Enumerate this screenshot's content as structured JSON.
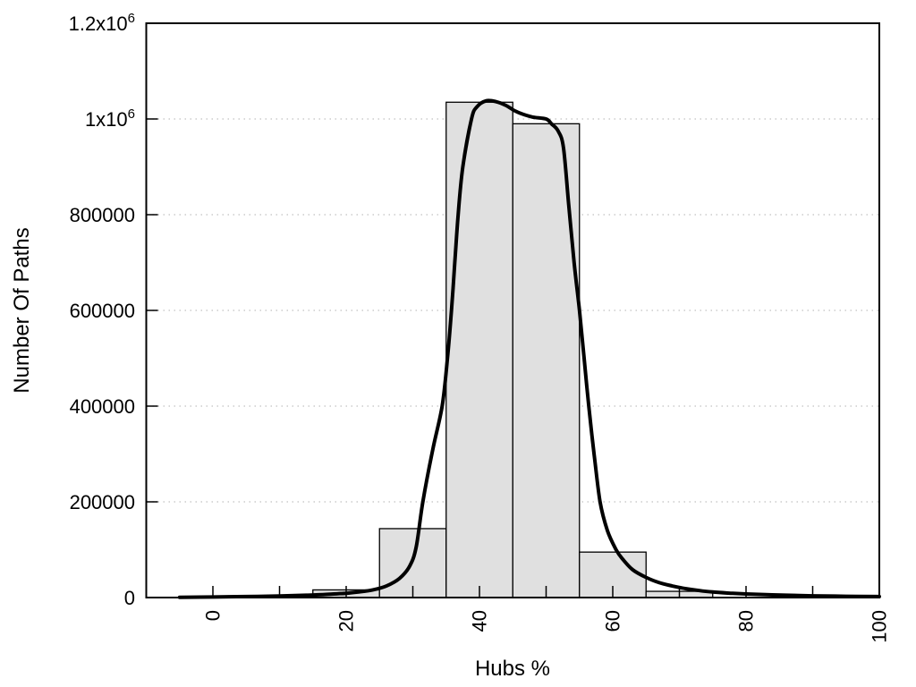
{
  "chart_data": {
    "type": "bar",
    "subtype": "histogram-with-fit-curve",
    "title": "",
    "xlabel": "Hubs %",
    "ylabel": "Number Of Paths",
    "xlim": [
      -10,
      100
    ],
    "ylim": [
      0,
      1200000
    ],
    "legend": "none",
    "grid": {
      "horizontal_at": [
        200000,
        400000,
        600000,
        800000,
        1000000
      ],
      "style": "dotted",
      "color": "#cccccc"
    },
    "x_ticks": {
      "major_values": [
        0,
        20,
        40,
        60,
        80,
        100
      ],
      "labels": [
        "0",
        "20",
        "40",
        "60",
        "80",
        "100"
      ],
      "minor_step": 10,
      "label_rotation_deg": -90
    },
    "y_ticks": {
      "values": [
        0,
        200000,
        400000,
        600000,
        800000,
        1000000,
        1200000
      ],
      "labels": [
        "0",
        "200000",
        "400000",
        "600000",
        "800000",
        "1x10^6",
        "1.2x10^6"
      ]
    },
    "bars": {
      "fill_color": "#e0e0e0",
      "edge_color": "#000000",
      "bin_width": 10,
      "bins": [
        {
          "x_start": 15,
          "x_end": 25,
          "count": 16000
        },
        {
          "x_start": 25,
          "x_end": 35,
          "count": 144000
        },
        {
          "x_start": 35,
          "x_end": 45,
          "count": 1035000
        },
        {
          "x_start": 45,
          "x_end": 55,
          "count": 990000
        },
        {
          "x_start": 55,
          "x_end": 65,
          "count": 95000
        },
        {
          "x_start": 65,
          "x_end": 75,
          "count": 13000
        }
      ]
    },
    "curve": {
      "color": "#000000",
      "stroke_width": 4,
      "points": [
        [
          -5,
          500
        ],
        [
          0,
          1200
        ],
        [
          5,
          2000
        ],
        [
          10,
          3200
        ],
        [
          14,
          4800
        ],
        [
          17,
          6500
        ],
        [
          20,
          9000
        ],
        [
          22,
          12000
        ],
        [
          24,
          16000
        ],
        [
          26,
          24000
        ],
        [
          28,
          40000
        ],
        [
          29.5,
          65000
        ],
        [
          30.5,
          105000
        ],
        [
          31.5,
          200000
        ],
        [
          33,
          310000
        ],
        [
          34.4,
          400000
        ],
        [
          35.2,
          500000
        ],
        [
          35.8,
          600000
        ],
        [
          36.3,
          700000
        ],
        [
          36.8,
          800000
        ],
        [
          37.5,
          900000
        ],
        [
          38.8,
          1000000
        ],
        [
          39.6,
          1025000
        ],
        [
          41,
          1038000
        ],
        [
          42.5,
          1036000
        ],
        [
          44,
          1028000
        ],
        [
          45.3,
          1017000
        ],
        [
          46.5,
          1010000
        ],
        [
          48,
          1004000
        ],
        [
          50,
          1000000
        ],
        [
          50.8,
          990000
        ],
        [
          51.8,
          975000
        ],
        [
          52.6,
          940000
        ],
        [
          53.4,
          820000
        ],
        [
          54.2,
          700000
        ],
        [
          55.0,
          600000
        ],
        [
          55.7,
          500000
        ],
        [
          56.4,
          400000
        ],
        [
          57.2,
          300000
        ],
        [
          58.1,
          200000
        ],
        [
          59.2,
          140000
        ],
        [
          60.5,
          100000
        ],
        [
          61.5,
          80000
        ],
        [
          63,
          58000
        ],
        [
          65,
          42000
        ],
        [
          67,
          31000
        ],
        [
          69,
          24000
        ],
        [
          71,
          18500
        ],
        [
          73,
          14500
        ],
        [
          75,
          11500
        ],
        [
          78,
          8800
        ],
        [
          80,
          7500
        ],
        [
          83,
          6000
        ],
        [
          86,
          4800
        ],
        [
          90,
          3600
        ],
        [
          95,
          2700
        ],
        [
          100,
          2000
        ]
      ]
    },
    "frame_color": "#000000",
    "background_color": "#ffffff"
  }
}
